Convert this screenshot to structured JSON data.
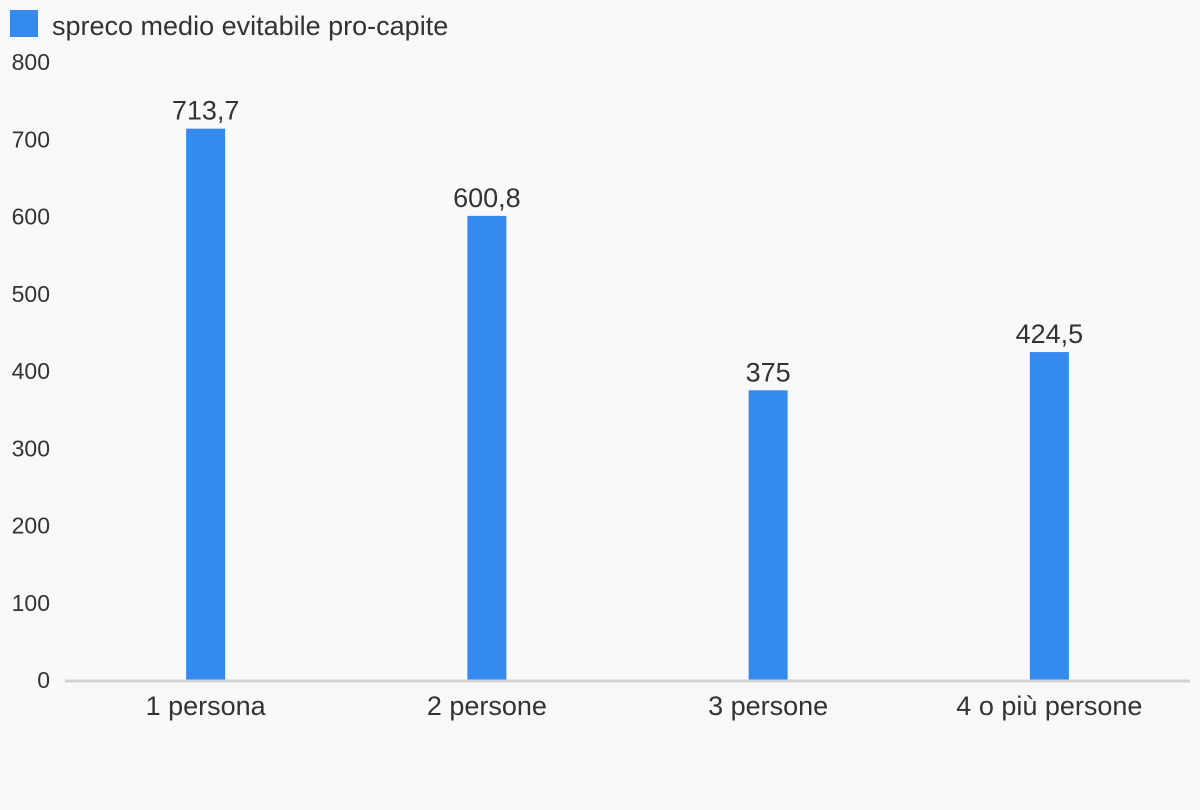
{
  "chart_data": {
    "type": "bar",
    "categories": [
      "1 persona",
      "2 persone",
      "3 persone",
      "4 o più persone"
    ],
    "series": [
      {
        "name": "spreco medio evitabile pro-capite",
        "values": [
          713.7,
          600.8,
          375,
          424.5
        ],
        "data_labels": [
          "713,7",
          "600,8",
          "375",
          "424,5"
        ],
        "color": "#348bed"
      }
    ],
    "ylim": [
      0,
      800
    ],
    "yticks": [
      0,
      100,
      200,
      300,
      400,
      500,
      600,
      700,
      800
    ],
    "title": "",
    "xlabel": "",
    "ylabel": "",
    "grid": false,
    "legend_position": "top-left",
    "axis_color": "#d3d3d3",
    "text_color": "#333333",
    "background_color": "#f9f9f9"
  }
}
